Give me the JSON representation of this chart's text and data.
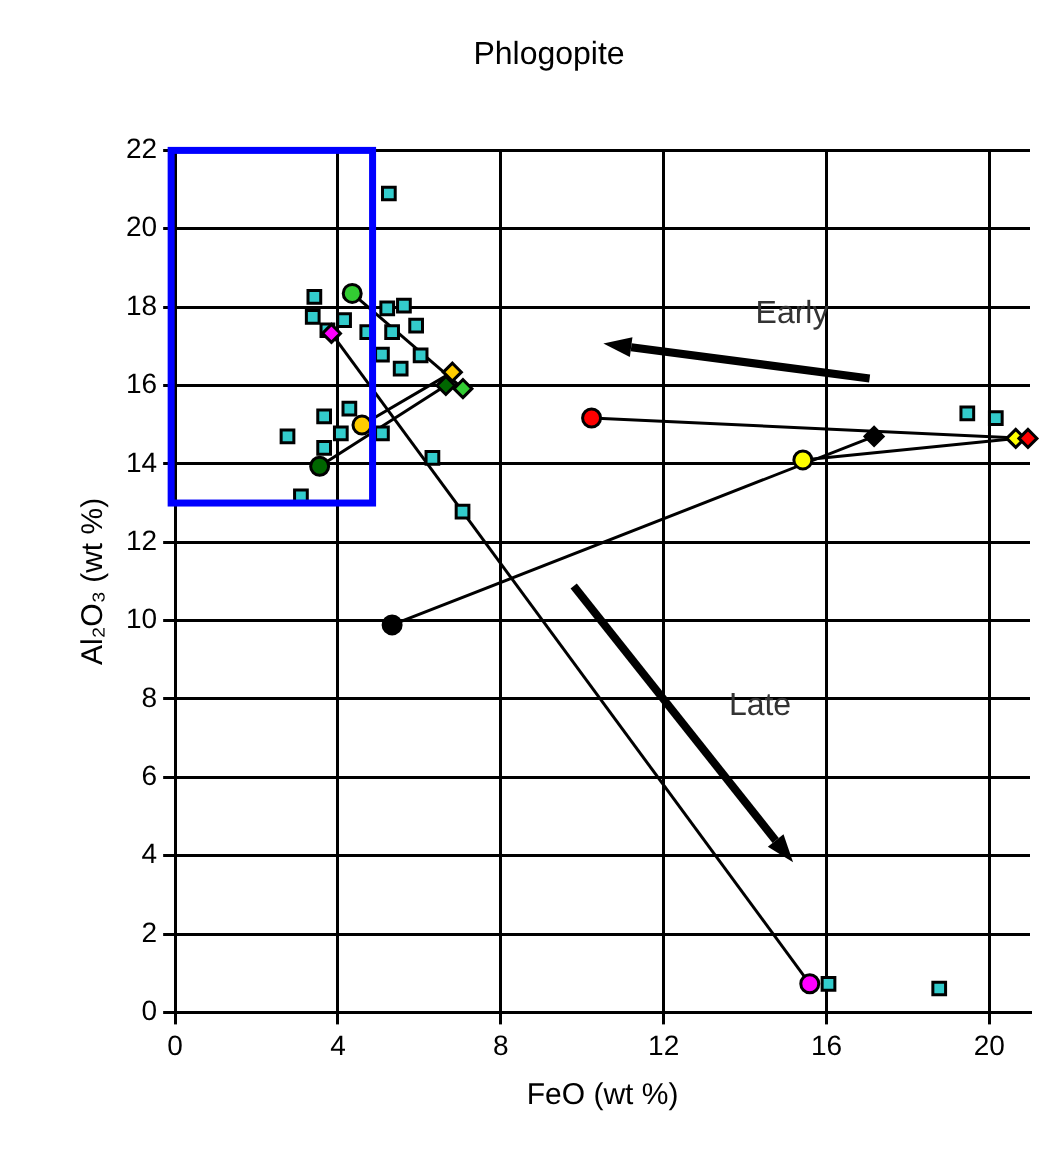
{
  "chart_data": {
    "type": "scatter",
    "title": "Phlogopite",
    "xlabel": "FeO (wt %)",
    "ylabel": "Al₂O₃ (wt %)",
    "xlim": [
      0,
      21
    ],
    "ylim": [
      0,
      22
    ],
    "xticks": [
      0,
      4,
      8,
      12,
      16,
      20
    ],
    "yticks": [
      0,
      2,
      4,
      6,
      8,
      10,
      12,
      14,
      16,
      18,
      20,
      22
    ],
    "grid": true,
    "legend": false,
    "annotations": [
      "Early",
      "Late"
    ],
    "series": [
      {
        "type": "line",
        "color": "#000000",
        "marker": "none",
        "x": [
          4.35,
          7.07
        ],
        "values": [
          18.35,
          15.92
        ]
      },
      {
        "type": "line",
        "color": "#000000",
        "marker": "none",
        "x": [
          3.55,
          6.65
        ],
        "values": [
          13.94,
          16.0
        ]
      },
      {
        "type": "line",
        "color": "#000000",
        "marker": "none",
        "x": [
          4.59,
          6.81
        ],
        "values": [
          14.99,
          16.34
        ]
      },
      {
        "type": "line",
        "color": "#000000",
        "marker": "none",
        "x": [
          3.84,
          15.59
        ],
        "values": [
          17.33,
          0.73
        ]
      },
      {
        "type": "line",
        "color": "#000000",
        "marker": "none",
        "x": [
          5.33,
          17.17
        ],
        "values": [
          9.89,
          14.7
        ]
      },
      {
        "type": "line",
        "color": "#000000",
        "marker": "none",
        "x": [
          15.42,
          20.65
        ],
        "values": [
          14.1,
          14.65
        ]
      },
      {
        "type": "line",
        "color": "#000000",
        "marker": "none",
        "x": [
          10.23,
          20.95
        ],
        "values": [
          15.17,
          14.65
        ]
      },
      {
        "type": "scatter",
        "marker": "square",
        "color": "#33cccc",
        "x": [
          5.25,
          3.42,
          3.38,
          3.74,
          4.15,
          5.21,
          5.62,
          5.92,
          4.72,
          5.33,
          5.08,
          6.03,
          5.54,
          3.66,
          4.28,
          4.07,
          5.08,
          2.76,
          3.66,
          6.32,
          3.09,
          7.06,
          19.46,
          20.16,
          16.05,
          18.77
        ],
        "values": [
          20.9,
          18.26,
          17.75,
          17.41,
          17.67,
          17.97,
          18.04,
          17.53,
          17.36,
          17.36,
          16.79,
          16.77,
          16.43,
          15.21,
          15.41,
          14.78,
          14.78,
          14.7,
          14.41,
          14.15,
          13.17,
          12.78,
          15.29,
          15.17,
          0.73,
          0.61
        ]
      },
      {
        "type": "scatter",
        "marker": "circle",
        "colors": [
          "#33cc33",
          "#006600",
          "#ffcc00",
          "#ff00ff",
          "#000000",
          "#ffff00",
          "#ff0000"
        ],
        "x": [
          4.35,
          3.55,
          4.59,
          15.59,
          5.33,
          15.42,
          10.23
        ],
        "values": [
          18.35,
          13.94,
          14.99,
          0.73,
          9.89,
          14.1,
          15.17
        ]
      },
      {
        "type": "scatter",
        "marker": "diamond",
        "colors": [
          "#33cc33",
          "#006600",
          "#ffcc00",
          "#ff00ff",
          "#000000",
          "#ffff00",
          "#ff0000"
        ],
        "x": [
          7.07,
          6.65,
          6.81,
          3.84,
          17.17,
          20.65,
          20.95
        ],
        "values": [
          15.92,
          16.0,
          16.34,
          17.33,
          14.7,
          14.65,
          14.65
        ]
      }
    ]
  }
}
